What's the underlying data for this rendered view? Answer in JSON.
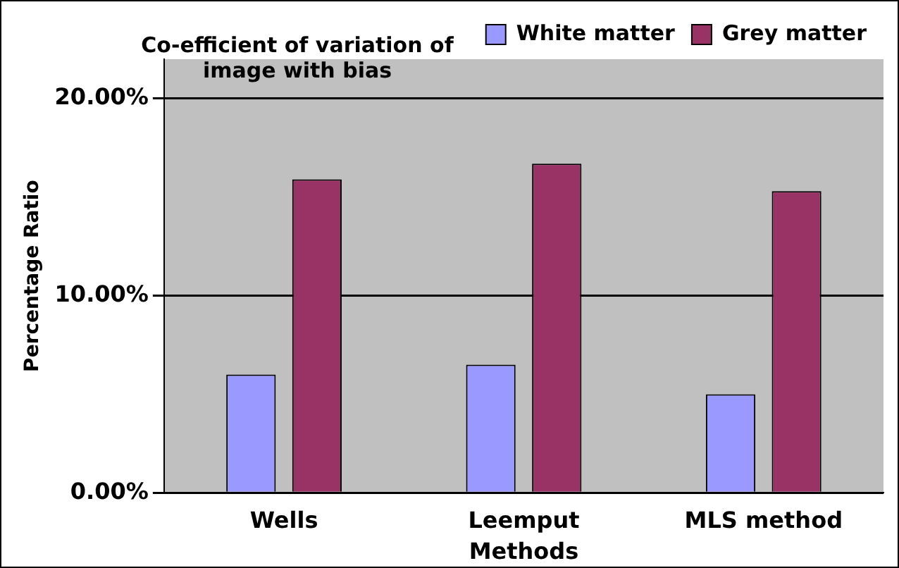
{
  "chart_data": {
    "type": "bar",
    "title": "Co-efficient of variation of image with bias",
    "xlabel": "Methods",
    "ylabel": "Percentage Ratio",
    "categories": [
      "Wells",
      "Leemput",
      "MLS method"
    ],
    "series": [
      {
        "name": "White matter",
        "color": "#9999ff",
        "values": [
          6.0,
          6.5,
          5.0
        ]
      },
      {
        "name": "Grey matter",
        "color": "#993366",
        "values": [
          15.9,
          16.7,
          15.3
        ]
      }
    ],
    "ylim": [
      0,
      22
    ],
    "yticks": [
      {
        "value": 0,
        "label": "0.00%"
      },
      {
        "value": 10,
        "label": "10.00%"
      },
      {
        "value": 20,
        "label": "20.00%"
      }
    ],
    "grid": "y",
    "legend": "top right"
  }
}
